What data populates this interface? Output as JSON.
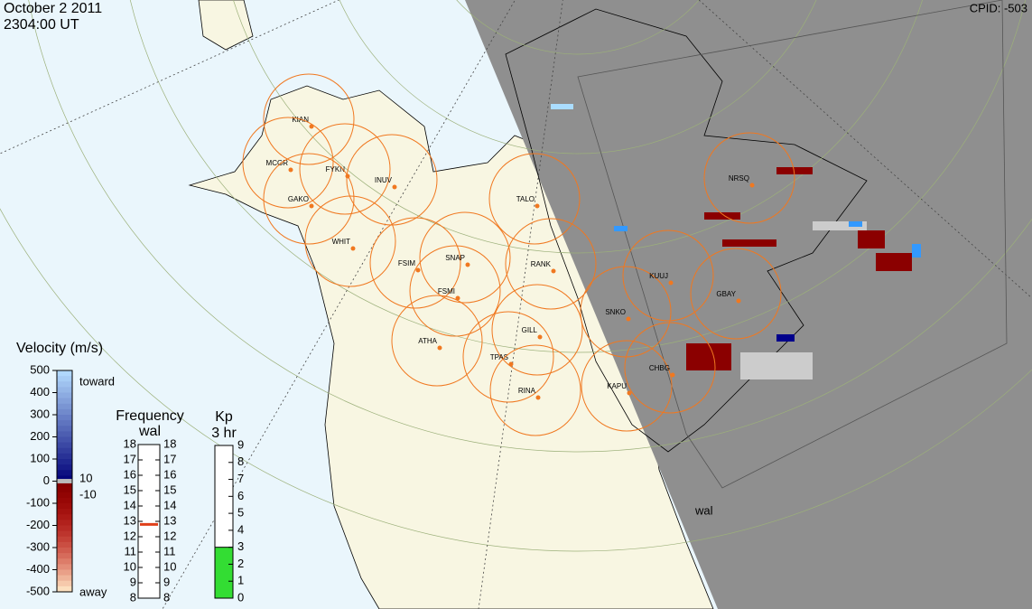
{
  "header": {
    "date": "October  2 2011",
    "time": "2304:00 UT",
    "cpid": "CPID:  -503"
  },
  "stations": [
    "KIAN",
    "MCGR",
    "FYKN",
    "INUV",
    "GAKO",
    "WHIT",
    "FSIM",
    "SNAP",
    "FSMI",
    "TALO",
    "RANK",
    "SNKO",
    "KUUJ",
    "GBAY",
    "NRSQ",
    "GILL",
    "ATHA",
    "TPAS",
    "RINA",
    "KAPU",
    "CHBG"
  ],
  "radar_label": "wal",
  "velocity": {
    "title": "Velocity (m/s)",
    "ticks": [
      500,
      400,
      300,
      200,
      100,
      0,
      -100,
      -200,
      -300,
      -400,
      -500
    ],
    "toward": "toward",
    "away": "away",
    "threshold": [
      10,
      -10
    ]
  },
  "frequency": {
    "title": "Frequency",
    "radar": "wal",
    "ticks": [
      18,
      17,
      16,
      15,
      14,
      13,
      12,
      11,
      10,
      9,
      8
    ],
    "value": 12.8
  },
  "kp": {
    "title": "Kp",
    "period": "3 hr",
    "ticks": [
      9,
      8,
      7,
      6,
      5,
      4,
      3,
      2,
      1,
      0
    ],
    "value": 3
  }
}
